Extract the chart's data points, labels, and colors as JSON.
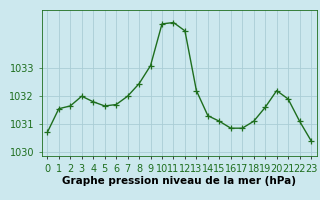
{
  "x": [
    0,
    1,
    2,
    3,
    4,
    5,
    6,
    7,
    8,
    9,
    10,
    11,
    12,
    13,
    14,
    15,
    16,
    17,
    18,
    19,
    20,
    21,
    22,
    23
  ],
  "y": [
    1030.7,
    1031.55,
    1031.65,
    1032.0,
    1031.8,
    1031.65,
    1031.7,
    1032.0,
    1032.45,
    1033.1,
    1034.6,
    1034.65,
    1034.35,
    1032.2,
    1031.3,
    1031.1,
    1030.85,
    1030.85,
    1031.1,
    1031.6,
    1032.2,
    1031.9,
    1031.1,
    1030.4
  ],
  "line_color": "#1e6e1e",
  "marker": "+",
  "marker_size": 4,
  "bg_color": "#cce8ee",
  "grid_color": "#aacdd5",
  "xlabel": "Graphe pression niveau de la mer (hPa)",
  "xlabel_fontsize": 7.5,
  "yticks": [
    1030,
    1031,
    1032,
    1033
  ],
  "ylim": [
    1029.85,
    1035.1
  ],
  "xlim": [
    -0.5,
    23.5
  ],
  "tick_fontsize": 7,
  "line_width": 1.0,
  "tick_color": "#1e6e1e",
  "xlabel_color": "#000000"
}
